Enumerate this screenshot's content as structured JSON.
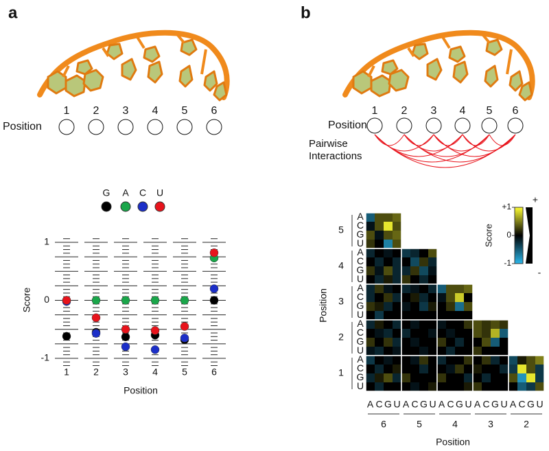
{
  "panel_a": {
    "label": "a",
    "position_label": "Position",
    "positions": [
      1,
      2,
      3,
      4,
      5,
      6
    ]
  },
  "panel_b": {
    "label": "b",
    "position_label": "Position",
    "positions": [
      1,
      2,
      3,
      4,
      5,
      6
    ],
    "annotation": [
      "Pairwise",
      "Interactions"
    ],
    "annotation_color": "#e8141c"
  },
  "chart_data": [
    {
      "type": "dot",
      "categories": [
        1,
        2,
        3,
        4,
        5,
        6
      ],
      "xlabel": "Position",
      "ylabel": "Score",
      "ylim": [
        -1,
        1
      ],
      "yticks": [
        -1,
        0,
        1
      ],
      "legend": "top",
      "series": [
        {
          "name": "G",
          "color": "#000000",
          "values": [
            -0.62,
            -0.55,
            -0.63,
            -0.6,
            -0.68,
            0
          ]
        },
        {
          "name": "A",
          "color": "#1aa64a",
          "values": [
            0,
            0,
            0,
            0,
            0,
            0.73
          ]
        },
        {
          "name": "C",
          "color": "#1c2fc8",
          "values": [
            -0.02,
            -0.57,
            -0.8,
            -0.85,
            -0.65,
            0.2
          ]
        },
        {
          "name": "U",
          "color": "#e8141c",
          "values": [
            0,
            -0.3,
            -0.5,
            -0.52,
            -0.45,
            0.82
          ]
        }
      ]
    },
    {
      "type": "heatmap",
      "xlabel": "Position",
      "ylabel": "Position",
      "row_groups": [
        5,
        4,
        3,
        2,
        1
      ],
      "col_groups": [
        6,
        5,
        4,
        3,
        2
      ],
      "bases": [
        "A",
        "C",
        "G",
        "U"
      ],
      "base_colors": [
        "#1aa64a",
        "#1c2fc8",
        "#111111",
        "#e8141c"
      ],
      "colormap": [
        "#2bb8ec",
        "#000000",
        "#ffff33"
      ],
      "colorbar": {
        "label": "Score",
        "lim": [
          -1,
          1
        ],
        "ticks": [
          {
            "value": 1,
            "label": "+1"
          },
          0,
          -1
        ],
        "high_sign": "+",
        "low_sign": "-"
      },
      "values": [
        [
          [
            [
              -0.5,
              0.3,
              0.3,
              0.4
            ],
            [
              -0.1,
              0.3,
              0.9,
              0.3
            ],
            [
              0.3,
              -0.1,
              0.3,
              0.4
            ],
            [
              0.2,
              0,
              -0.7,
              0.3
            ]
          ]
        ],
        [
          [
            [
              -0.2,
              0,
              -0.1,
              0
            ],
            [
              0,
              -0.2,
              0,
              -0.2
            ],
            [
              0.2,
              -0.1,
              0.3,
              -0.2
            ],
            [
              0,
              -0.2,
              0.1,
              -0.2
            ]
          ],
          [
            [
              -0.3,
              -0.2,
              0,
              0.3
            ],
            [
              0,
              -0.4,
              0.2,
              -0.2
            ],
            [
              -0.2,
              0.2,
              -0.4,
              -0.1
            ],
            [
              0.2,
              0,
              -0.2,
              0
            ]
          ]
        ],
        [
          [
            [
              -0.2,
              0.2,
              -0.1,
              0
            ],
            [
              -0.2,
              0,
              0.2,
              -0.2
            ],
            [
              0.2,
              0.1,
              -0.2,
              0
            ],
            [
              0,
              -0.3,
              0,
              0
            ]
          ],
          [
            [
              -0.2,
              -0.1,
              0,
              -0.2
            ],
            [
              0,
              0.1,
              -0.2,
              0
            ],
            [
              -0.1,
              0,
              -0.3,
              0.1
            ],
            [
              0,
              0,
              0,
              0
            ]
          ],
          [
            [
              -0.5,
              0.3,
              0.3,
              0.4
            ],
            [
              -0.1,
              0.3,
              0.8,
              0
            ],
            [
              0,
              0.2,
              -0.6,
              0.3
            ],
            [
              0,
              0,
              0,
              0
            ]
          ]
        ],
        [
          [
            [
              -0.2,
              0.1,
              0,
              -0.2
            ],
            [
              0,
              -0.1,
              -0.2,
              0
            ],
            [
              0.2,
              0,
              0.2,
              -0.2
            ],
            [
              -0.1,
              -0.2,
              0,
              -0.1
            ]
          ],
          [
            [
              0,
              -0.1,
              0,
              0
            ],
            [
              -0.2,
              0,
              0,
              -0.1
            ],
            [
              0,
              -0.1,
              0,
              0
            ],
            [
              0,
              0,
              -0.1,
              0
            ]
          ],
          [
            [
              -0.1,
              0,
              0,
              0.2
            ],
            [
              0,
              -0.1,
              0,
              0
            ],
            [
              0.2,
              0,
              -0.2,
              0
            ],
            [
              0,
              -0.2,
              0,
              0
            ]
          ],
          [
            [
              0.3,
              0.2,
              0.3,
              0.2
            ],
            [
              0.3,
              0.2,
              0.7,
              -0.5
            ],
            [
              0,
              0.3,
              -0.5,
              0
            ],
            [
              0.2,
              0,
              0,
              0
            ]
          ]
        ],
        [
          [
            [
              -0.3,
              0,
              -0.1,
              0
            ],
            [
              0,
              -0.2,
              0,
              0.1
            ],
            [
              -0.2,
              0.1,
              0.3,
              -0.2
            ],
            [
              0,
              -0.2,
              0,
              0
            ]
          ],
          [
            [
              0,
              -0.1,
              0.2,
              0
            ],
            [
              0,
              0,
              -0.2,
              0
            ],
            [
              0.2,
              0,
              0,
              0
            ],
            [
              0,
              -0.1,
              0,
              0.1
            ]
          ],
          [
            [
              -0.2,
              0,
              0,
              0.2
            ],
            [
              0,
              -0.1,
              0.2,
              0
            ],
            [
              0.2,
              0,
              0,
              -0.2
            ],
            [
              0,
              0,
              0,
              0.1
            ]
          ],
          [
            [
              0,
              0.2,
              -0.2,
              0
            ],
            [
              0.1,
              0,
              0,
              -0.2
            ],
            [
              0,
              -0.2,
              0,
              0
            ],
            [
              0.2,
              0,
              0,
              0
            ]
          ],
          [
            [
              -0.4,
              0.1,
              0.3,
              0.5
            ],
            [
              -0.3,
              0.9,
              0.3,
              -0.3
            ],
            [
              0.3,
              -0.8,
              0.9,
              -0.3
            ],
            [
              0,
              -0.5,
              -0.3,
              0.3
            ]
          ]
        ]
      ]
    }
  ]
}
